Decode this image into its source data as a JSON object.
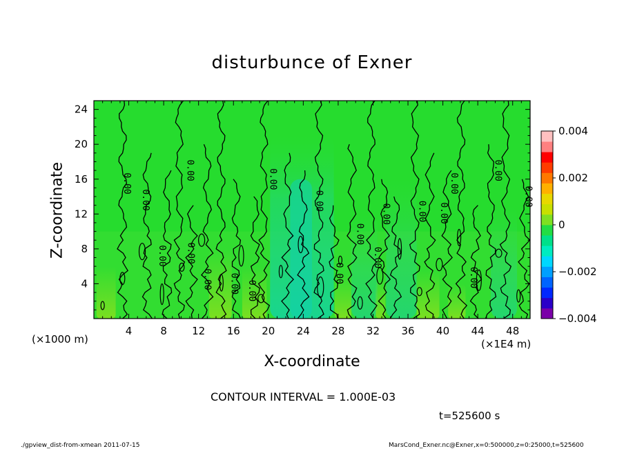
{
  "chart_data": {
    "type": "heatmap",
    "title": "disturbunce of Exner",
    "xlabel": "X-coordinate",
    "ylabel": "Z-coordinate",
    "x_unit_label": "(×1000 m)",
    "x_unit_label2": "(×1E4 m)",
    "xlim": [
      0,
      50
    ],
    "ylim": [
      0,
      25
    ],
    "x_ticks": [
      4,
      8,
      12,
      16,
      20,
      24,
      28,
      32,
      36,
      40,
      44,
      48
    ],
    "y_ticks": [
      4,
      8,
      12,
      16,
      20,
      24
    ],
    "colorbar": {
      "min": -0.004,
      "max": 0.004,
      "tick_labels": [
        "0.004",
        "0.002",
        "0",
        "−0.002",
        "−0.004"
      ],
      "tick_values": [
        0.004,
        0.002,
        0,
        -0.002,
        -0.004
      ],
      "colors": [
        "#7a00a8",
        "#2a00c8",
        "#0028ff",
        "#0064ff",
        "#00a0ff",
        "#00d8ff",
        "#00ecc0",
        "#00e08a",
        "#22dd44",
        "#7fe022",
        "#c8e000",
        "#e8d800",
        "#ffb000",
        "#ff7800",
        "#ff3c00",
        "#ff0000",
        "#ff8080",
        "#ffc0c0"
      ]
    },
    "contour_interval_text": "CONTOUR INTERVAL = 1.000E-03",
    "contour_label": "0.00",
    "contour_labels": [
      {
        "x": 3.5,
        "z": 15.5,
        "text": "0.00"
      },
      {
        "x": 5.6,
        "z": 13.6,
        "text": "0.00"
      },
      {
        "x": 10.7,
        "z": 17.0,
        "text": "0.00"
      },
      {
        "x": 20.2,
        "z": 16.0,
        "text": "0.00"
      },
      {
        "x": 25.5,
        "z": 13.5,
        "text": "0.00"
      },
      {
        "x": 7.5,
        "z": 7.2,
        "text": "0.00"
      },
      {
        "x": 10.8,
        "z": 7.5,
        "text": "0.00"
      },
      {
        "x": 12.7,
        "z": 4.5,
        "text": "0.00"
      },
      {
        "x": 15.8,
        "z": 4.0,
        "text": "0.00"
      },
      {
        "x": 17.8,
        "z": 3.2,
        "text": "0.00"
      },
      {
        "x": 27.8,
        "z": 5.2,
        "text": "0.00"
      },
      {
        "x": 30.2,
        "z": 9.7,
        "text": "0.00"
      },
      {
        "x": 32.2,
        "z": 7.0,
        "text": "0.00"
      },
      {
        "x": 33.2,
        "z": 12.0,
        "text": "0.00"
      },
      {
        "x": 37.3,
        "z": 12.3,
        "text": "0.00"
      },
      {
        "x": 39.8,
        "z": 12.1,
        "text": "0.00"
      },
      {
        "x": 41.0,
        "z": 15.5,
        "text": "0.00"
      },
      {
        "x": 43.2,
        "z": 4.7,
        "text": "0.00"
      },
      {
        "x": 46.0,
        "z": 17.0,
        "text": "0.00"
      },
      {
        "x": 49.5,
        "z": 14.0,
        "text": "0.00"
      }
    ],
    "contour_lines_x": [
      3.3,
      6.1,
      8.4,
      9.8,
      11.2,
      13.0,
      14.6,
      16.3,
      18.5,
      19.5,
      22.2,
      24.0,
      25.8,
      27.5,
      29.6,
      31.8,
      33.3,
      34.6,
      36.8,
      38.5,
      40.5,
      42.1,
      43.8,
      45.5,
      47.2,
      49.3
    ]
  },
  "time_label": "t=525600 s",
  "footer_left": "./gpview_dist-from-xmean  2011-07-15",
  "footer_right": "MarsCond_Exner.nc@Exner,x=0:500000,z=0:25000,t=525600"
}
